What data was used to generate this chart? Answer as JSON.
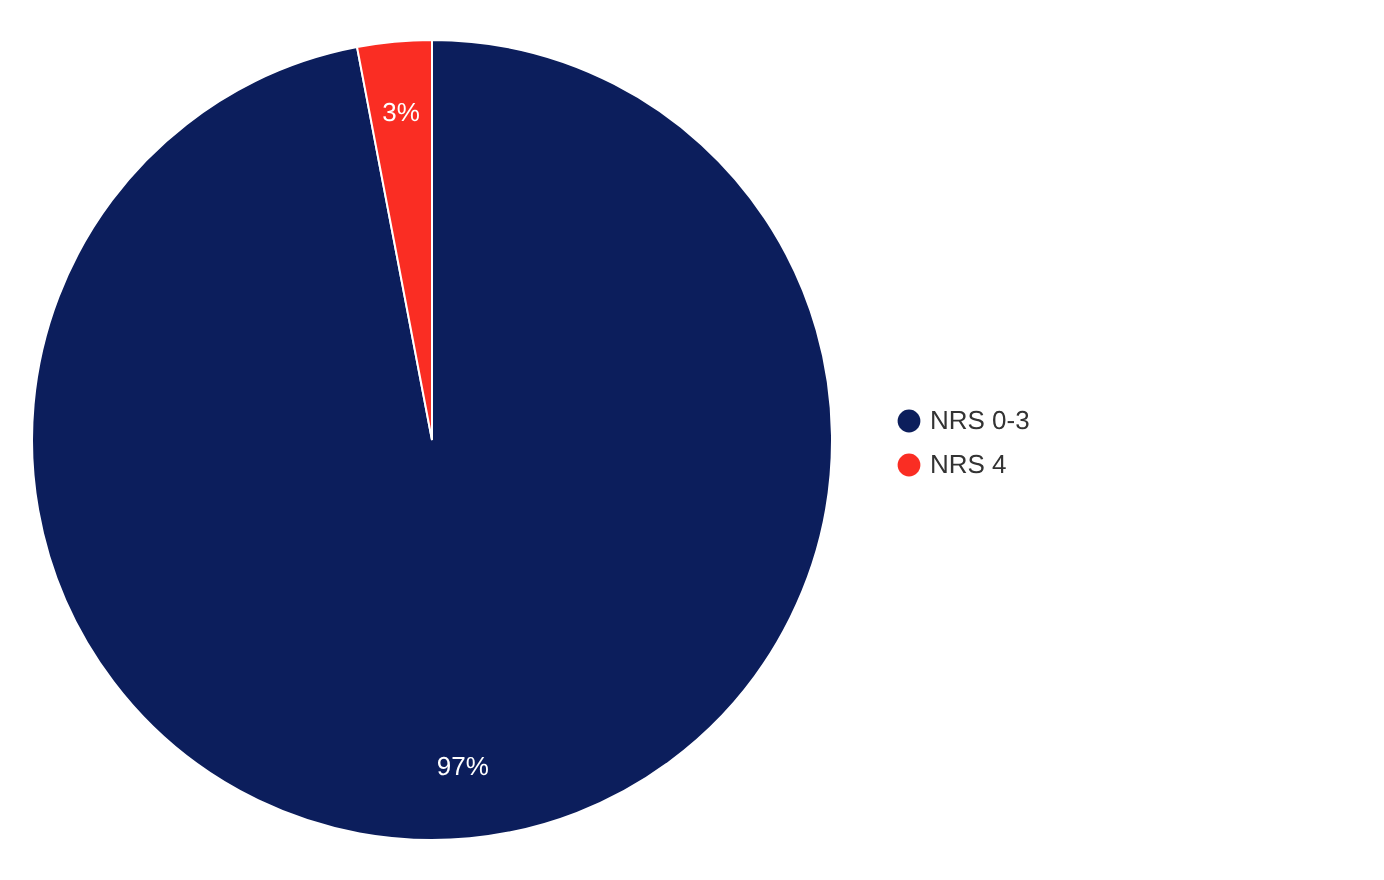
{
  "chart_data": {
    "type": "pie",
    "categories": [
      "NRS 0-3",
      "NRS 4"
    ],
    "values": [
      97,
      3
    ],
    "colors": [
      "#0c1e5c",
      "#fa2d23"
    ],
    "value_labels": [
      "97%",
      "3%"
    ],
    "legend": "right"
  }
}
